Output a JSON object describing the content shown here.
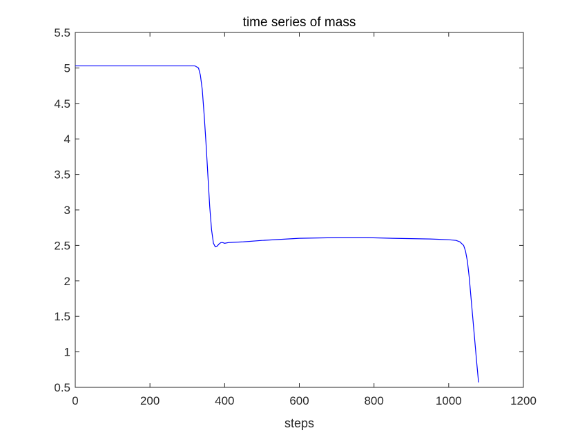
{
  "chart_data": {
    "type": "line",
    "title": "time series of mass",
    "xlabel": "steps",
    "ylabel": "",
    "xlim": [
      0,
      1200
    ],
    "ylim": [
      0.5,
      5.5
    ],
    "xticks": [
      0,
      200,
      400,
      600,
      800,
      1000,
      1200
    ],
    "yticks": [
      0.5,
      1,
      1.5,
      2,
      2.5,
      3,
      3.5,
      4,
      4.5,
      5,
      5.5
    ],
    "xtick_labels": [
      "0",
      "200",
      "400",
      "600",
      "800",
      "1000",
      "1200"
    ],
    "ytick_labels": [
      "0.5",
      "1",
      "1.5",
      "2",
      "2.5",
      "3",
      "3.5",
      "4",
      "4.5",
      "5",
      "5.5"
    ],
    "grid": false,
    "line_color": "#0000ff",
    "series": [
      {
        "x": [
          0,
          100,
          200,
          300,
          320,
          330,
          335,
          340,
          345,
          350,
          355,
          360,
          365,
          370,
          375,
          380,
          385,
          390,
          395,
          400,
          410,
          450,
          500,
          600,
          700,
          780,
          850,
          950,
          1000,
          1020,
          1030,
          1040,
          1045,
          1050,
          1055,
          1060,
          1065,
          1070,
          1075,
          1080
        ],
        "y": [
          5.03,
          5.03,
          5.03,
          5.03,
          5.03,
          5.0,
          4.9,
          4.7,
          4.35,
          3.95,
          3.5,
          3.05,
          2.72,
          2.53,
          2.48,
          2.49,
          2.52,
          2.54,
          2.54,
          2.53,
          2.54,
          2.55,
          2.57,
          2.6,
          2.61,
          2.61,
          2.6,
          2.59,
          2.58,
          2.57,
          2.55,
          2.5,
          2.42,
          2.28,
          2.05,
          1.75,
          1.45,
          1.15,
          0.85,
          0.57
        ]
      }
    ]
  }
}
